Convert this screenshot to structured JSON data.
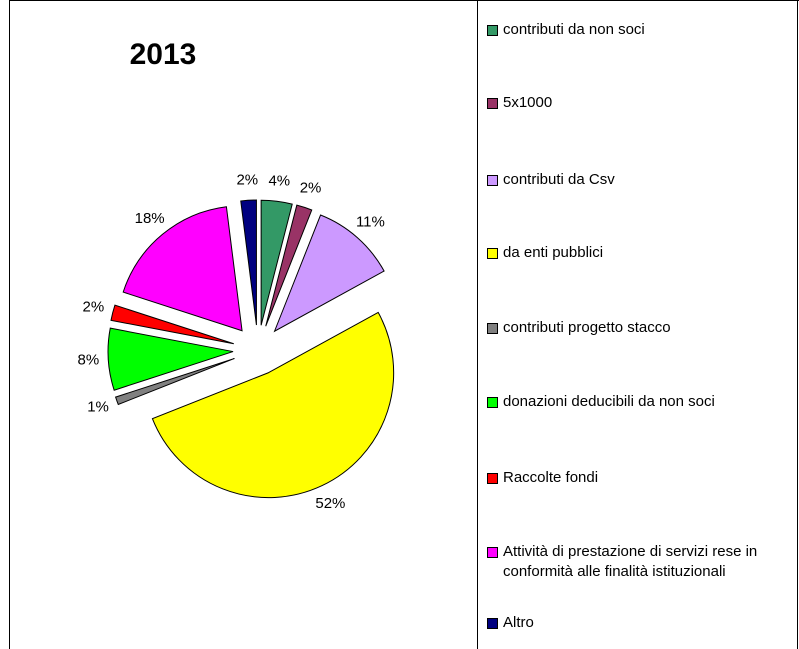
{
  "chart_data": {
    "type": "pie",
    "title": "2013",
    "categories": [
      "contributi da non soci",
      "5x1000",
      "contributi da Csv",
      "da enti pubblici",
      "contributi progetto stacco",
      "donazioni deducibili da non soci",
      "Raccolte fondi",
      "Attività di prestazione di servizi rese in conformità alle finalità istituzionali",
      "Altro"
    ],
    "values": [
      4,
      2,
      11,
      52,
      1,
      8,
      2,
      18,
      2
    ],
    "value_labels": [
      "4%",
      "2%",
      "11%",
      "52%",
      "1%",
      "8%",
      "2%",
      "18%",
      "2%"
    ],
    "colors": [
      "#339966",
      "#993366",
      "#cc99ff",
      "#ffff00",
      "#808080",
      "#00ff00",
      "#ff0000",
      "#ff00ff",
      "#000080"
    ],
    "legend": "right"
  }
}
